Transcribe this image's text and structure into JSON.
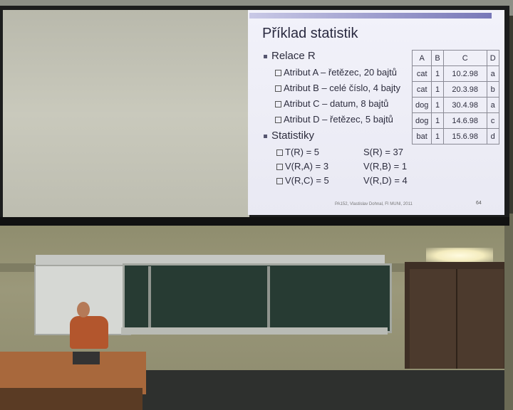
{
  "slide": {
    "title": "Příklad statistik",
    "section1": "Relace R",
    "attributes": [
      "Atribut A – řetězec, 20 bajtů",
      "Atribut B – celé číslo, 4 bajty",
      "Atribut C – datum, 8 bajtů",
      "Atribut D – řetězec, 5 bajtů"
    ],
    "section2": "Statistiky",
    "stats_left": [
      "T(R) = 5",
      "V(R,A) = 3",
      "V(R,C) = 5"
    ],
    "stats_right": [
      "S(R) = 37",
      "V(R,B) = 1",
      "V(R,D) = 4"
    ],
    "table": {
      "headers": [
        "A",
        "B",
        "C",
        "D"
      ],
      "rows": [
        [
          "cat",
          "1",
          "10.2.98",
          "a"
        ],
        [
          "cat",
          "1",
          "20.3.98",
          "b"
        ],
        [
          "dog",
          "1",
          "30.4.98",
          "a"
        ],
        [
          "dog",
          "1",
          "14.6.98",
          "c"
        ],
        [
          "bat",
          "1",
          "15.6.98",
          "d"
        ]
      ]
    },
    "footer": "PA152, Vlastislav Dohnal, FI MUNI, 2011",
    "page": "64"
  }
}
